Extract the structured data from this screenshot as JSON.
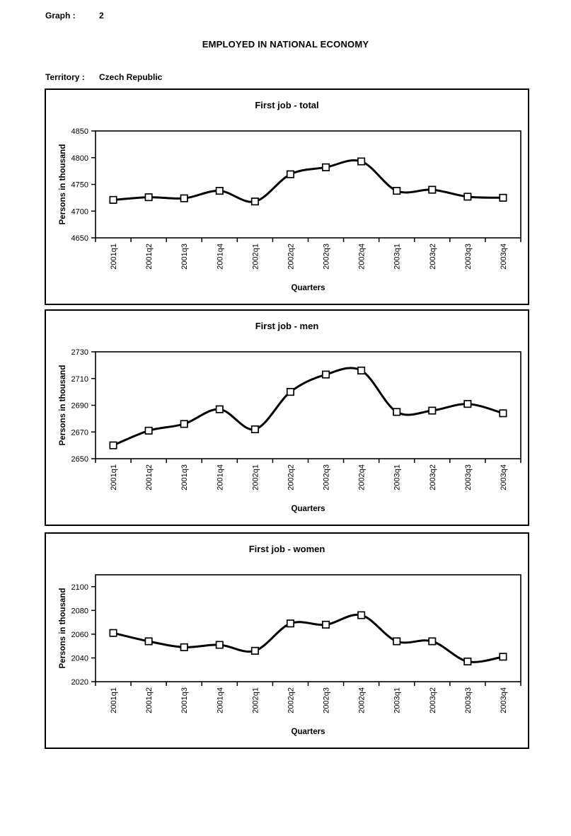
{
  "header": {
    "graph_label": "Graph :",
    "graph_number": "2",
    "main_title": "EMPLOYED IN NATIONAL ECONOMY",
    "territory_label": "Territory :",
    "territory_value": "Czech Republic"
  },
  "colors": {
    "line": "#000000",
    "marker_fill": "#ffffff",
    "marker_stroke": "#000000",
    "axis": "#000000",
    "background": "#ffffff"
  },
  "chart_data": [
    {
      "type": "line",
      "title": "First job - total",
      "ylabel": "Persons in thousand",
      "xlabel": "Quarters",
      "categories": [
        "2001q1",
        "2001q2",
        "2001q3",
        "2001q4",
        "2002q1",
        "2002q2",
        "2002q3",
        "2002q4",
        "2003q1",
        "2003q2",
        "2003q3",
        "2003q4"
      ],
      "values": [
        4721,
        4726,
        4724,
        4738,
        4718,
        4769,
        4782,
        4793,
        4738,
        4740,
        4727,
        4725
      ],
      "yticks": [
        4650,
        4700,
        4750,
        4800,
        4850
      ],
      "ylim": [
        4650,
        4850
      ],
      "grid": false,
      "legend": "none",
      "smoothed": true
    },
    {
      "type": "line",
      "title": "First job - men",
      "ylabel": "Persons in thousand",
      "xlabel": "Quarters",
      "categories": [
        "2001q1",
        "2001q2",
        "2001q3",
        "2001q4",
        "2002q1",
        "2002q2",
        "2002q3",
        "2002q4",
        "2003q1",
        "2003q2",
        "2003q3",
        "2003q4"
      ],
      "values": [
        2660,
        2671,
        2676,
        2687,
        2672,
        2700,
        2713,
        2716,
        2685,
        2686,
        2691,
        2684
      ],
      "yticks": [
        2650,
        2670,
        2690,
        2710,
        2730
      ],
      "ylim": [
        2650,
        2730
      ],
      "grid": false,
      "legend": "none",
      "smoothed": true
    },
    {
      "type": "line",
      "title": "First job - women",
      "ylabel": "Persons in thousand",
      "xlabel": "Quarters",
      "categories": [
        "2001q1",
        "2001q2",
        "2001q3",
        "2001q4",
        "2002q1",
        "2002q2",
        "2002q3",
        "2002q4",
        "2003q1",
        "2003q2",
        "2003q3",
        "2003q4"
      ],
      "values": [
        2061,
        2054,
        2049,
        2051,
        2046,
        2069,
        2068,
        2076,
        2054,
        2054,
        2037,
        2041
      ],
      "yticks": [
        2020,
        2040,
        2060,
        2080,
        2100
      ],
      "ylim": [
        2020,
        2110
      ],
      "grid": false,
      "legend": "none",
      "smoothed": true
    }
  ]
}
